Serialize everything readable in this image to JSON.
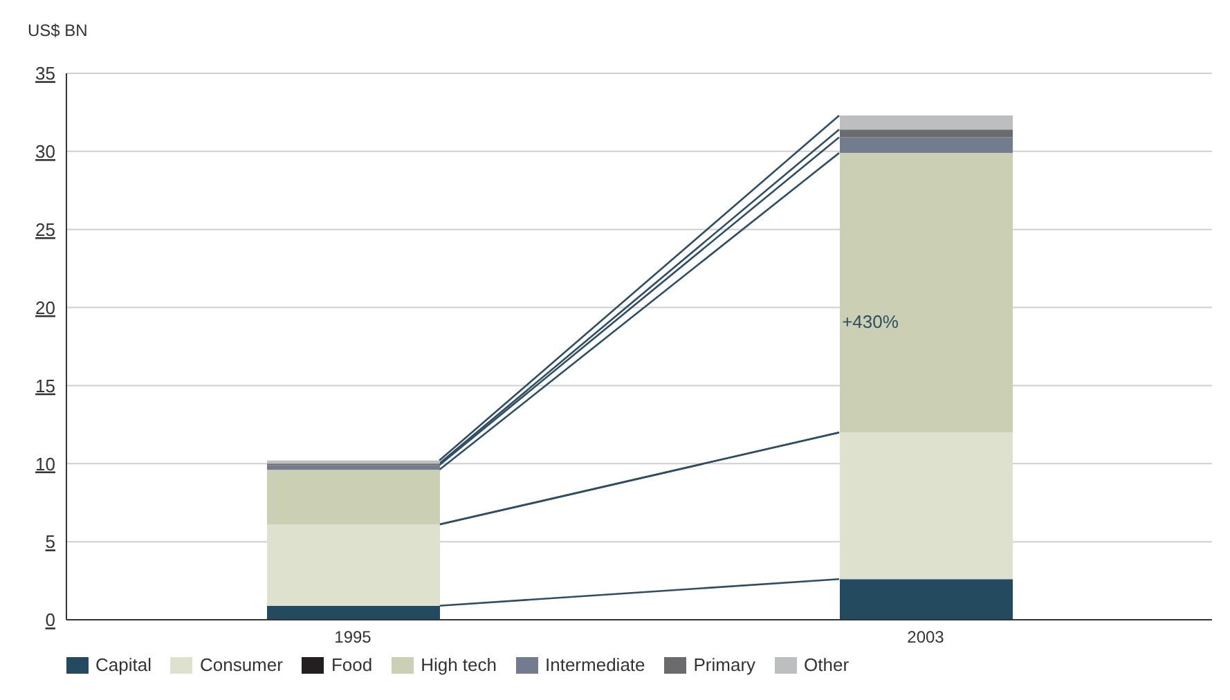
{
  "chart_data": {
    "type": "bar",
    "stacked": true,
    "ylabel": "US$ BN",
    "categories": [
      "1995",
      "2003"
    ],
    "series": [
      {
        "name": "Capital",
        "color": "#244a60",
        "values": [
          0.9,
          2.6
        ]
      },
      {
        "name": "Consumer",
        "color": "#dfe1cf",
        "values": [
          5.2,
          9.4
        ]
      },
      {
        "name": "Food",
        "color": "#231f20",
        "values": [
          0,
          0
        ]
      },
      {
        "name": "High tech",
        "color": "#cbd0b4",
        "values": [
          3.5,
          17.9
        ]
      },
      {
        "name": "Intermediate",
        "color": "#737b8e",
        "values": [
          0.3,
          1.0
        ]
      },
      {
        "name": "Primary",
        "color": "#6b6b6d",
        "values": [
          0.1,
          0.5
        ]
      },
      {
        "name": "Other",
        "color": "#bdbec0",
        "values": [
          0.2,
          0.9
        ]
      }
    ],
    "ylim": [
      0,
      35
    ],
    "yticks": [
      0,
      5,
      10,
      15,
      20,
      25,
      30,
      35
    ],
    "grid": "y",
    "legend": "bottom",
    "annotations": [
      "+430%"
    ]
  }
}
